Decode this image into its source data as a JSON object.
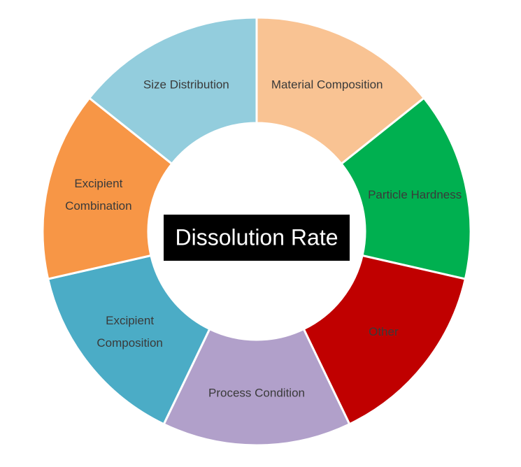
{
  "center_label": "Dissolution Rate",
  "segments": [
    {
      "lines": [
        "Material Composition"
      ]
    },
    {
      "lines": [
        "Particle Hardness"
      ]
    },
    {
      "lines": [
        "Other"
      ]
    },
    {
      "lines": [
        "Process Condition"
      ]
    },
    {
      "lines": [
        "Excipient",
        "Composition"
      ]
    },
    {
      "lines": [
        "Excipient",
        "Combination"
      ]
    },
    {
      "lines": [
        "Size Distribution"
      ]
    }
  ]
}
